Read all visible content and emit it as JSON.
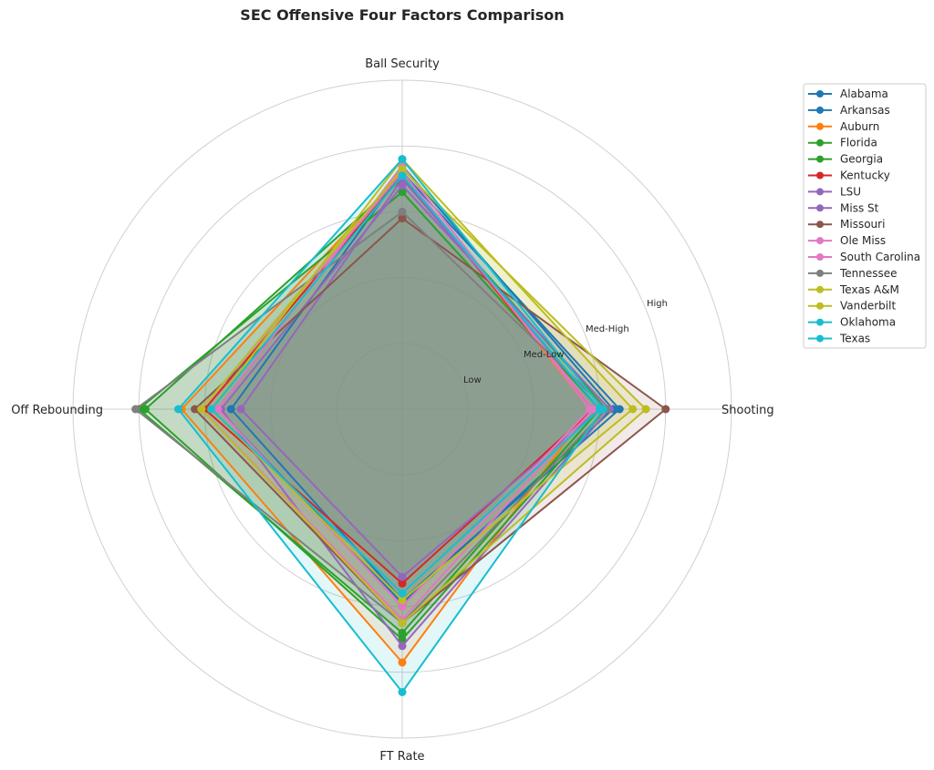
{
  "chart_data": {
    "type": "radar",
    "title": "SEC Offensive Four Factors Comparison",
    "axes": [
      "Ball Security",
      "Shooting",
      "FT Rate",
      "Off Rebounding"
    ],
    "ring_labels": [
      "Low",
      "Med-Low",
      "Med-High",
      "High"
    ],
    "range": [
      0,
      1
    ],
    "grid": true,
    "legend_position": "top-right",
    "series": [
      {
        "name": "Alabama",
        "color": "#1f77b4",
        "values": [
          0.72,
          0.66,
          0.58,
          0.52
        ]
      },
      {
        "name": "Arkansas",
        "color": "#1f77b4",
        "values": [
          0.74,
          0.64,
          0.59,
          0.56
        ]
      },
      {
        "name": "Auburn",
        "color": "#ff7f0e",
        "values": [
          0.72,
          0.57,
          0.77,
          0.67
        ]
      },
      {
        "name": "Florida",
        "color": "#2ca02c",
        "values": [
          0.66,
          0.6,
          0.68,
          0.8
        ]
      },
      {
        "name": "Georgia",
        "color": "#2ca02c",
        "values": [
          0.7,
          0.62,
          0.7,
          0.78
        ]
      },
      {
        "name": "Kentucky",
        "color": "#d62728",
        "values": [
          0.71,
          0.58,
          0.53,
          0.6
        ]
      },
      {
        "name": "LSU",
        "color": "#9467bd",
        "values": [
          0.68,
          0.63,
          0.72,
          0.55
        ]
      },
      {
        "name": "Miss St",
        "color": "#9467bd",
        "values": [
          0.7,
          0.6,
          0.51,
          0.49
        ]
      },
      {
        "name": "Missouri",
        "color": "#8c564b",
        "values": [
          0.58,
          0.8,
          0.65,
          0.63
        ]
      },
      {
        "name": "Ole Miss",
        "color": "#e377c2",
        "values": [
          0.74,
          0.57,
          0.6,
          0.56
        ]
      },
      {
        "name": "South Carolina",
        "color": "#e377c2",
        "values": [
          0.72,
          0.58,
          0.64,
          0.61
        ]
      },
      {
        "name": "Tennessee",
        "color": "#7f7f7f",
        "values": [
          0.6,
          0.62,
          0.65,
          0.81
        ]
      },
      {
        "name": "Texas A&M",
        "color": "#bcbd22",
        "values": [
          0.76,
          0.7,
          0.58,
          0.58
        ]
      },
      {
        "name": "Vanderbilt",
        "color": "#bcbd22",
        "values": [
          0.73,
          0.74,
          0.65,
          0.61
        ]
      },
      {
        "name": "Oklahoma",
        "color": "#17becf",
        "values": [
          0.71,
          0.6,
          0.56,
          0.58
        ]
      },
      {
        "name": "Texas",
        "color": "#17becf",
        "values": [
          0.76,
          0.61,
          0.86,
          0.68
        ]
      }
    ]
  }
}
